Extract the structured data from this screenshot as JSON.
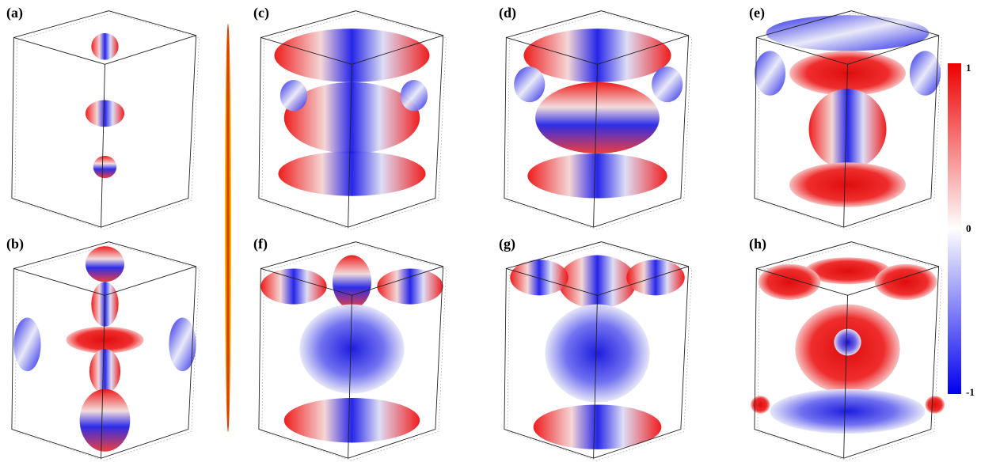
{
  "panels": [
    {
      "label": "(a)"
    },
    {
      "label": "(c)"
    },
    {
      "label": "(d)"
    },
    {
      "label": "(e)"
    },
    {
      "label": "(b)"
    },
    {
      "label": "(f)"
    },
    {
      "label": "(g)"
    },
    {
      "label": "(h)"
    }
  ],
  "colorbar": {
    "labels": [
      "1",
      "0",
      "-1"
    ]
  }
}
